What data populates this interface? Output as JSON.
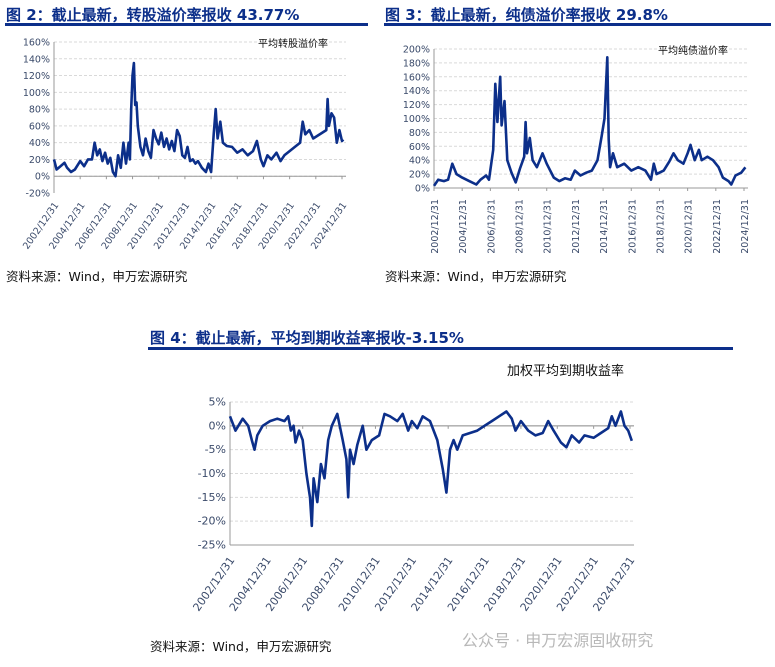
{
  "figures": [
    {
      "title": "图 2：截止最新，转股溢价率报收 43.77%",
      "source": "资料来源：Wind，申万宏源研究"
    },
    {
      "title": "图 3：截止最新，纯债溢价率报收 29.8%",
      "source": "资料来源：Wind，申万宏源研究"
    },
    {
      "title": "图 4：截止最新，平均到期收益率报收-3.15%",
      "source": "资料来源：Wind，申万宏源研究"
    }
  ],
  "watermark": "公众号 · 申万宏源固收研究",
  "colors": {
    "line": "#0c2f8a",
    "axis_text": "#3a4a6a",
    "grid": "#d9d9d9"
  },
  "chart_data": [
    {
      "type": "line",
      "title": "平均转股溢价率",
      "ylim": [
        -20,
        160
      ],
      "ystep": 20,
      "ytick_suffix": "%",
      "xticks": [
        "2002/12/31",
        "2004/12/31",
        "2006/12/31",
        "2008/12/31",
        "2010/12/31",
        "2012/12/31",
        "2014/12/31",
        "2016/12/31",
        "2018/12/31",
        "2020/12/31",
        "2022/12/31",
        "2024/12/31"
      ],
      "x": [
        2003.0,
        2003.2,
        2003.5,
        2003.8,
        2004.0,
        2004.3,
        2004.6,
        2005.0,
        2005.3,
        2005.6,
        2005.9,
        2006.1,
        2006.3,
        2006.5,
        2006.7,
        2006.9,
        2007.1,
        2007.3,
        2007.5,
        2007.7,
        2007.9,
        2008.1,
        2008.3,
        2008.5,
        2008.7,
        2008.8,
        2008.9,
        2009.0,
        2009.1,
        2009.2,
        2009.3,
        2009.4,
        2009.6,
        2009.8,
        2010.0,
        2010.2,
        2010.4,
        2010.6,
        2010.8,
        2011.0,
        2011.2,
        2011.4,
        2011.6,
        2011.8,
        2012.0,
        2012.2,
        2012.4,
        2012.6,
        2012.8,
        2013.0,
        2013.2,
        2013.4,
        2013.6,
        2013.8,
        2014.0,
        2014.3,
        2014.6,
        2014.8,
        2015.0,
        2015.2,
        2015.35,
        2015.5,
        2015.7,
        2015.9,
        2016.2,
        2016.6,
        2017.0,
        2017.4,
        2017.8,
        2018.2,
        2018.5,
        2018.8,
        2019.0,
        2019.3,
        2019.6,
        2020.0,
        2020.3,
        2020.6,
        2021.0,
        2021.4,
        2021.8,
        2022.0,
        2022.2,
        2022.5,
        2022.8,
        2023.1,
        2023.5,
        2023.8,
        2023.9,
        2024.0,
        2024.2,
        2024.4,
        2024.6,
        2024.8,
        2025.0,
        2025.1
      ],
      "y": [
        20,
        8,
        12,
        16,
        10,
        5,
        8,
        18,
        12,
        20,
        20,
        40,
        25,
        32,
        18,
        28,
        15,
        22,
        5,
        0,
        25,
        10,
        40,
        15,
        40,
        20,
        80,
        120,
        135,
        85,
        88,
        60,
        35,
        25,
        45,
        30,
        22,
        55,
        45,
        38,
        52,
        35,
        45,
        32,
        42,
        30,
        55,
        48,
        25,
        22,
        35,
        18,
        20,
        15,
        18,
        10,
        5,
        15,
        5,
        50,
        80,
        45,
        65,
        40,
        36,
        35,
        28,
        32,
        25,
        30,
        42,
        20,
        12,
        25,
        20,
        28,
        18,
        25,
        30,
        35,
        40,
        65,
        50,
        55,
        45,
        48,
        52,
        55,
        92,
        60,
        75,
        70,
        40,
        55,
        42,
        43.77
      ]
    },
    {
      "type": "line",
      "title": "平均纯债溢价率",
      "ylim": [
        0,
        200
      ],
      "ystep": 20,
      "ytick_suffix": "%",
      "xticks": [
        "2002/12/31",
        "2004/12/31",
        "2006/12/31",
        "2008/12/31",
        "2010/12/31",
        "2012/12/31",
        "2014/12/31",
        "2016/12/31",
        "2018/12/31",
        "2020/12/31",
        "2022/12/31",
        "2024/12/31"
      ],
      "x": [
        2003.0,
        2003.3,
        2003.7,
        2004.0,
        2004.3,
        2004.6,
        2005.0,
        2005.5,
        2006.0,
        2006.3,
        2006.7,
        2006.9,
        2007.2,
        2007.35,
        2007.5,
        2007.7,
        2007.8,
        2008.0,
        2008.2,
        2008.5,
        2008.8,
        2009.1,
        2009.4,
        2009.5,
        2009.6,
        2009.8,
        2010.0,
        2010.3,
        2010.7,
        2011.0,
        2011.5,
        2011.9,
        2012.3,
        2012.7,
        2013.0,
        2013.4,
        2013.8,
        2014.2,
        2014.6,
        2014.9,
        2015.1,
        2015.3,
        2015.4,
        2015.5,
        2015.7,
        2016.0,
        2016.5,
        2017.0,
        2017.5,
        2018.0,
        2018.4,
        2018.6,
        2018.8,
        2019.3,
        2019.7,
        2020.0,
        2020.3,
        2020.7,
        2021.0,
        2021.2,
        2021.5,
        2021.8,
        2022.0,
        2022.4,
        2022.8,
        2023.2,
        2023.5,
        2023.9,
        2024.1,
        2024.4,
        2024.8,
        2025.1
      ],
      "y": [
        3,
        12,
        10,
        12,
        35,
        20,
        15,
        10,
        5,
        12,
        18,
        12,
        55,
        150,
        95,
        160,
        90,
        125,
        40,
        22,
        8,
        28,
        45,
        95,
        50,
        72,
        40,
        30,
        50,
        35,
        15,
        10,
        14,
        12,
        25,
        18,
        22,
        25,
        40,
        75,
        100,
        188,
        70,
        30,
        50,
        30,
        35,
        25,
        30,
        25,
        12,
        35,
        20,
        25,
        38,
        50,
        40,
        35,
        50,
        62,
        40,
        55,
        40,
        45,
        40,
        30,
        15,
        10,
        5,
        18,
        22,
        29.8
      ]
    },
    {
      "type": "line",
      "title": "加权平均到期收益率",
      "ylim": [
        -25,
        5
      ],
      "ystep": 5,
      "ytick_suffix": "%",
      "xticks": [
        "2002/12/31",
        "2004/12/31",
        "2006/12/31",
        "2008/12/31",
        "2010/12/31",
        "2012/12/31",
        "2014/12/31",
        "2016/12/31",
        "2018/12/31",
        "2020/12/31",
        "2022/12/31",
        "2024/12/31"
      ],
      "x": [
        2003.0,
        2003.3,
        2003.7,
        2004.0,
        2004.2,
        2004.35,
        2004.5,
        2004.8,
        2005.2,
        2005.6,
        2006.0,
        2006.2,
        2006.35,
        2006.5,
        2006.6,
        2006.8,
        2007.0,
        2007.2,
        2007.4,
        2007.5,
        2007.6,
        2007.8,
        2008.0,
        2008.2,
        2008.4,
        2008.6,
        2008.9,
        2009.2,
        2009.4,
        2009.5,
        2009.6,
        2009.8,
        2010.0,
        2010.3,
        2010.5,
        2010.8,
        2011.2,
        2011.5,
        2011.8,
        2012.2,
        2012.5,
        2012.8,
        2013.0,
        2013.3,
        2013.6,
        2014.0,
        2014.4,
        2014.7,
        2014.9,
        2015.1,
        2015.3,
        2015.5,
        2015.8,
        2016.2,
        2016.6,
        2017.0,
        2017.4,
        2017.8,
        2018.2,
        2018.5,
        2018.7,
        2019.0,
        2019.4,
        2019.8,
        2020.2,
        2020.5,
        2020.8,
        2021.2,
        2021.5,
        2021.8,
        2022.2,
        2022.5,
        2023.0,
        2023.4,
        2023.8,
        2024.0,
        2024.2,
        2024.5,
        2024.7,
        2024.9,
        2025.1
      ],
      "y": [
        2,
        -1,
        1.5,
        0,
        -3,
        -5,
        -2,
        0,
        1,
        1.5,
        1,
        2,
        -1,
        0,
        -3.5,
        -1,
        -3,
        -10,
        -15,
        -21,
        -11,
        -16,
        -8,
        -11,
        -3,
        0,
        2.5,
        -3,
        -7,
        -15,
        -5,
        -8,
        -4,
        0,
        -5,
        -3,
        -2,
        2.5,
        2,
        1,
        2.5,
        -1,
        1,
        -0.5,
        2,
        1,
        -3,
        -9,
        -14,
        -5,
        -3,
        -5,
        -2,
        -1.5,
        -1,
        0,
        1,
        2,
        3,
        1.5,
        -1,
        1,
        -1,
        -2,
        -1.5,
        1,
        -1,
        -3.5,
        -4.5,
        -2,
        -3.5,
        -2,
        -2.5,
        -1.5,
        -0.5,
        2,
        0,
        3,
        0,
        -1,
        -3.15
      ]
    }
  ]
}
